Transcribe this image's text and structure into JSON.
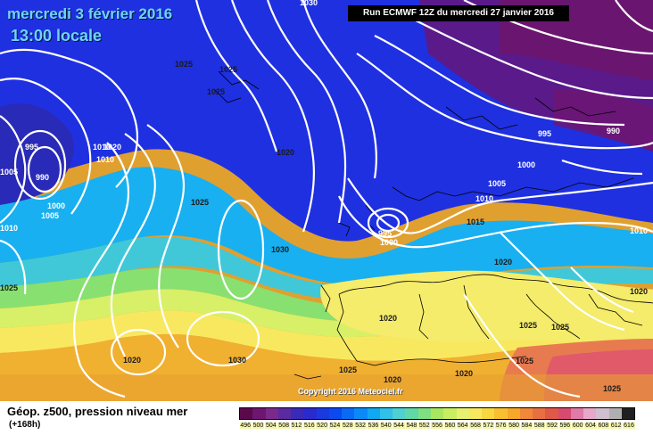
{
  "header": {
    "date": "mercredi 3 février 2016",
    "time": "13:00 locale",
    "run": "Run ECMWF 12Z du mercredi 27 janvier 2016"
  },
  "footer": {
    "title": "Géop. z500, pression niveau mer",
    "lead": "(+168h)",
    "copyright": "Copyright 2016 Meteociel.fr"
  },
  "legend": {
    "ticks": [
      "496",
      "500",
      "504",
      "508",
      "512",
      "516",
      "520",
      "524",
      "528",
      "532",
      "536",
      "540",
      "544",
      "548",
      "552",
      "556",
      "560",
      "564",
      "568",
      "572",
      "576",
      "580",
      "584",
      "588",
      "592",
      "596",
      "600",
      "604",
      "608",
      "612",
      "616"
    ],
    "colors": [
      "#5a0a4a",
      "#6e1570",
      "#7a2a8a",
      "#5a2aa0",
      "#3a2ab8",
      "#2a2acf",
      "#1a3ae0",
      "#0a4af0",
      "#0a6af5",
      "#0a8af8",
      "#10a8f0",
      "#30c0e8",
      "#50d0d0",
      "#60d8a8",
      "#80e080",
      "#a8e860",
      "#c8ef60",
      "#e8f070",
      "#f8e860",
      "#f8d840",
      "#f8c030",
      "#f8a828",
      "#f08838",
      "#e87040",
      "#e05848",
      "#d84a70",
      "#e07aa8",
      "#e8a8c8",
      "#d0c0d0",
      "#b0b0b0",
      "#202020"
    ]
  },
  "map": {
    "pressure_labels": [
      {
        "text": "1030"
      },
      {
        "text": "1025"
      },
      {
        "text": "1025"
      },
      {
        "text": "1025"
      },
      {
        "text": "995"
      },
      {
        "text": "1010"
      },
      {
        "text": "1020"
      },
      {
        "text": "1010"
      },
      {
        "text": "1005"
      },
      {
        "text": "990"
      },
      {
        "text": "1000"
      },
      {
        "text": "1005"
      },
      {
        "text": "1010"
      },
      {
        "text": "1020"
      },
      {
        "text": "1025"
      },
      {
        "text": "1025"
      },
      {
        "text": "1030"
      },
      {
        "text": "1020"
      },
      {
        "text": "1030"
      },
      {
        "text": "1020"
      },
      {
        "text": "995"
      },
      {
        "text": "990"
      },
      {
        "text": "1000"
      },
      {
        "text": "1005"
      },
      {
        "text": "1010"
      },
      {
        "text": "1015"
      },
      {
        "text": "995"
      },
      {
        "text": "1000"
      },
      {
        "text": "1020"
      },
      {
        "text": "1010"
      },
      {
        "text": "1020"
      },
      {
        "text": "1025"
      },
      {
        "text": "1025"
      },
      {
        "text": "1025"
      },
      {
        "text": "1020"
      },
      {
        "text": "1025"
      },
      {
        "text": "1020"
      },
      {
        "text": "1025"
      }
    ]
  }
}
